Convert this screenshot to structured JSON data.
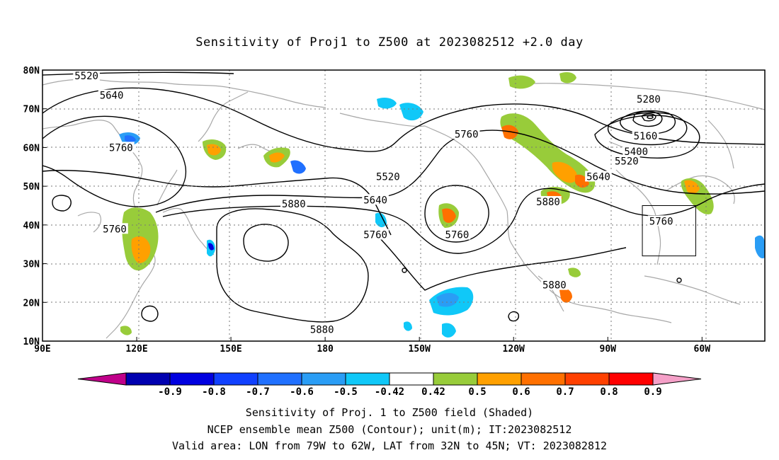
{
  "title": "Sensitivity of Proj1 to Z500 at 2023082512 +2.0 day",
  "lat_labels": [
    "80N",
    "70N",
    "60N",
    "50N",
    "40N",
    "30N",
    "20N",
    "10N"
  ],
  "lon_labels": [
    "90E",
    "120E",
    "150E",
    "180",
    "150W",
    "120W",
    "90W",
    "60W"
  ],
  "contour_labels": [
    {
      "text": "5520",
      "lon": 104,
      "lat": 78.5
    },
    {
      "text": "5640",
      "lon": 112,
      "lat": 73.5
    },
    {
      "text": "5760",
      "lon": 115,
      "lat": 60
    },
    {
      "text": "5280",
      "lon": 283,
      "lat": 72.5
    },
    {
      "text": "5160",
      "lon": 282,
      "lat": 63
    },
    {
      "text": "5400",
      "lon": 279,
      "lat": 59
    },
    {
      "text": "5520",
      "lon": 276,
      "lat": 56.5
    },
    {
      "text": "5640",
      "lon": 267,
      "lat": 52.5
    },
    {
      "text": "5760",
      "lon": 225,
      "lat": 63.5
    },
    {
      "text": "5520",
      "lon": 200,
      "lat": 52.5
    },
    {
      "text": "5640",
      "lon": 196,
      "lat": 46.5
    },
    {
      "text": "5880",
      "lon": 170,
      "lat": 45.5
    },
    {
      "text": "5760",
      "lon": 113,
      "lat": 39
    },
    {
      "text": "5760",
      "lon": 196,
      "lat": 37.5
    },
    {
      "text": "5760",
      "lon": 222,
      "lat": 37.5
    },
    {
      "text": "5880",
      "lon": 251,
      "lat": 46
    },
    {
      "text": "5760",
      "lon": 287,
      "lat": 41
    },
    {
      "text": "5880",
      "lon": 253,
      "lat": 24.5
    },
    {
      "text": "5880",
      "lon": 179,
      "lat": 13
    }
  ],
  "colorbar": {
    "labels": [
      "-0.9",
      "-0.8",
      "-0.7",
      "-0.6",
      "-0.5",
      "-0.42",
      "0.42",
      "0.5",
      "0.6",
      "0.7",
      "0.8",
      "0.9"
    ],
    "colors": [
      "#0000b0",
      "#0000e0",
      "#1040ff",
      "#2070ff",
      "#2a9df5",
      "#10c8f8",
      "#ffffff",
      "#98cc3a",
      "#ffa000",
      "#ff7000",
      "#ff4000",
      "#ff0000"
    ],
    "low_extend_color": "#c0008a",
    "high_extend_color": "#f5a0c8"
  },
  "captions": [
    "Sensitivity of Proj. 1 to Z500 field (Shaded)",
    "NCEP ensemble mean Z500 (Contour); unit(m); IT:2023082512",
    "Valid area: LON from 79W to 62W, LAT from 32N to 45N; VT: 2023082812"
  ],
  "valid_area": {
    "lon_min": -79,
    "lon_max": -62,
    "lat_min": 32,
    "lat_max": 45
  }
}
